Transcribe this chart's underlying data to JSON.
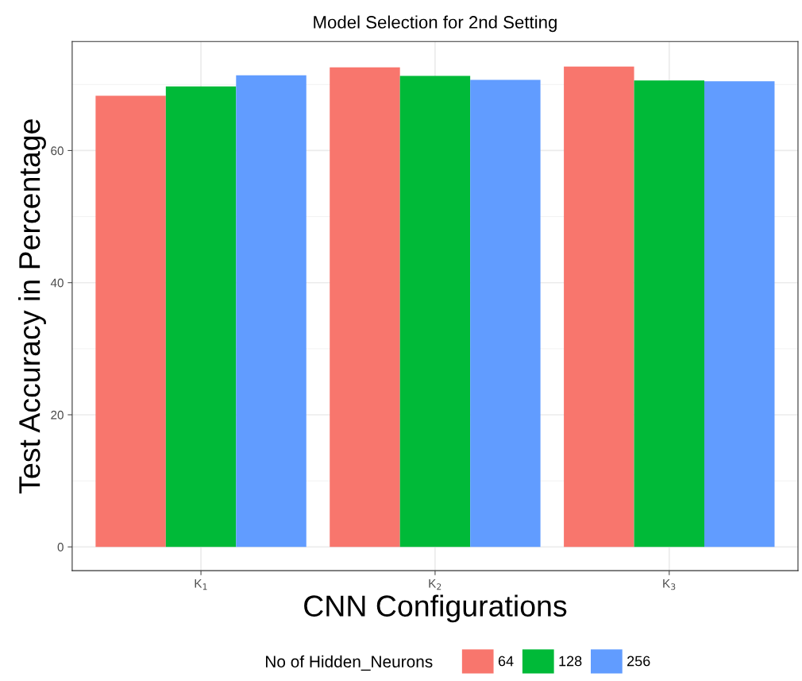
{
  "chart_data": {
    "type": "bar",
    "title": "Model Selection for 2nd Setting",
    "xlabel": "CNN Configurations",
    "ylabel": "Test Accuracy in Percentage",
    "legend_title": "No of Hidden_Neurons",
    "categories": [
      "K$_{1}$",
      "K$_{2}$",
      "K$_{3}$"
    ],
    "series": [
      {
        "name": "64",
        "color": "#f8766d",
        "values": [
          68.3,
          72.6,
          72.7
        ]
      },
      {
        "name": "128",
        "color": "#00ba38",
        "values": [
          69.7,
          71.3,
          70.6
        ]
      },
      {
        "name": "256",
        "color": "#619cff",
        "values": [
          71.4,
          70.7,
          70.5
        ]
      }
    ],
    "ylim": [
      -3.6,
      76.5
    ],
    "yticks": [
      0,
      20,
      40,
      60
    ],
    "grid": true,
    "legend": "bottom"
  }
}
